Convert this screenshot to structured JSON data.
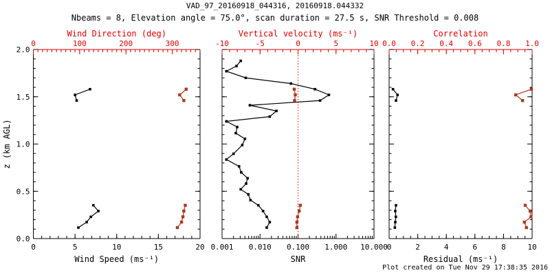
{
  "header": {
    "title": "VAD_97_20160918_044316, 20160918.044332",
    "subtitle": "Nbeams = 8, Elevation angle = 75.0°, scan duration = 27.5 s, SNR Threshold = 0.008"
  },
  "footer": {
    "created": "Plot created on Tue Nov 29 17:38:35 2016"
  },
  "colors": {
    "black": "#000000",
    "data_red": "#a93b22",
    "axis_red": "#dd0000",
    "background": "#ffffff"
  },
  "chart_data": {
    "type": "line",
    "title": "VAD_97_20160918_044316, 20160918.044332",
    "subtitle": "Nbeams = 8, Elevation angle = 75.0°, scan duration = 27.5 s, SNR Threshold = 0.008",
    "grid": false,
    "y_axis": {
      "label": "z (km AGL)",
      "min": 0,
      "max": 2,
      "ticks": [
        0.0,
        0.5,
        1.0,
        1.5,
        2.0
      ],
      "tick_labels": [
        "0.0",
        "0.5",
        "1.0",
        "1.5",
        "2.0"
      ],
      "minor_step": 0.1
    },
    "panels": [
      {
        "name": "wind-panel",
        "bottom_axis": {
          "label": "Wind Speed (ms⁻¹)",
          "scale": "linear",
          "min": 0,
          "max": 20,
          "ticks": [
            0,
            5,
            10,
            15,
            20
          ],
          "tick_labels": [
            "0",
            "5",
            "10",
            "15",
            "20"
          ],
          "minor_step": 1
        },
        "top_axis": {
          "label": "Wind Direction (deg)",
          "scale": "linear",
          "min": 0,
          "max": 360,
          "ticks": [
            0,
            100,
            200,
            300
          ],
          "tick_labels": [
            "0",
            "100",
            "200",
            "300"
          ],
          "minor_step": 10
        },
        "series": [
          {
            "name": "wind-speed",
            "axis": "bottom",
            "color": "black",
            "marker": 3.6,
            "clusters": [
              {
                "z": [
                  0.116,
                  0.174,
                  0.23,
                  0.291,
                  0.352
                ],
                "v": [
                  5.4,
                  6.4,
                  6.9,
                  7.8,
                  7.2
                ]
              },
              {
                "z": [
                  1.46,
                  1.52,
                  1.58
                ],
                "v": [
                  5.2,
                  5.0,
                  6.8
                ]
              }
            ]
          },
          {
            "name": "wind-direction",
            "axis": "top",
            "color": "data_red",
            "marker": 4.4,
            "clusters": [
              {
                "z": [
                  0.116,
                  0.174,
                  0.23,
                  0.291,
                  0.352
                ],
                "v": [
                  311,
                  320,
                  323,
                  325,
                  328
                ]
              },
              {
                "z": [
                  1.46,
                  1.52,
                  1.58
                ],
                "v": [
                  325,
                  316,
                  330
                ]
              }
            ]
          }
        ]
      },
      {
        "name": "snr-panel",
        "bottom_axis": {
          "label": "SNR",
          "scale": "log",
          "min": 0.001,
          "max": 10,
          "ticks": [
            0.001,
            0.01,
            0.1,
            1,
            10
          ],
          "tick_labels": [
            "0.001",
            "0.010",
            "0.100",
            "1.000",
            "10.000"
          ]
        },
        "top_axis": {
          "label": "Vertical velocity (ms⁻¹)",
          "scale": "linear",
          "min": -10,
          "max": 10,
          "ticks": [
            -10,
            -5,
            0,
            5,
            10
          ],
          "tick_labels": [
            "-10",
            "-5",
            "0",
            "5",
            "10"
          ],
          "minor_step": 1
        },
        "ref_line": {
          "axis": "top",
          "value": 0,
          "style": "dotted",
          "color": "axis_red"
        },
        "series": [
          {
            "name": "snr-profile",
            "axis": "bottom",
            "color": "black",
            "marker": 3.6,
            "clusters": [
              {
                "z": [
                  0.116,
                  0.174,
                  0.23,
                  0.291,
                  0.352,
                  0.407,
                  0.468,
                  0.521,
                  0.582,
                  0.638,
                  0.7,
                  0.764,
                  0.836,
                  0.897,
                  0.989,
                  1.055,
                  1.115,
                  1.18,
                  1.24,
                  1.29,
                  1.35,
                  1.41,
                  1.46,
                  1.52,
                  1.58,
                  1.64,
                  1.7,
                  1.77,
                  1.825,
                  1.88
                ],
                "v": [
                  0.015,
                  0.018,
                  0.015,
                  0.012,
                  0.009,
                  0.0056,
                  0.0049,
                  0.0031,
                  0.0043,
                  0.0047,
                  0.0032,
                  0.0028,
                  0.0013,
                  0.002,
                  0.0034,
                  0.004,
                  0.0023,
                  0.0025,
                  0.0013,
                  0.018,
                  0.027,
                  0.0054,
                  0.38,
                  0.65,
                  0.28,
                  0.065,
                  0.0042,
                  0.0013,
                  0.0024,
                  0.0031
                ]
              }
            ]
          },
          {
            "name": "vertical-velocity",
            "axis": "top",
            "color": "data_red",
            "marker": 4.4,
            "clusters": [
              {
                "z": [
                  0.116,
                  0.174,
                  0.23,
                  0.291,
                  0.352
                ],
                "v": [
                  -0.15,
                  -0.15,
                  -0.06,
                  0.15,
                  0.3
                ]
              },
              {
                "z": [
                  1.46,
                  1.52,
                  1.58
                ],
                "v": [
                  -0.45,
                  -0.36,
                  -0.5
                ]
              }
            ]
          }
        ]
      },
      {
        "name": "residual-panel",
        "bottom_axis": {
          "label": "Residual (ms⁻¹)",
          "scale": "linear",
          "min": 0,
          "max": 10,
          "ticks": [
            0,
            2,
            4,
            6,
            8,
            10
          ],
          "tick_labels": [
            "0",
            "2",
            "4",
            "6",
            "8",
            "10"
          ],
          "minor_step": 0.5
        },
        "top_axis": {
          "label": "Correlation",
          "scale": "linear",
          "min": 0,
          "max": 1,
          "ticks": [
            0,
            0.2,
            0.4,
            0.6,
            0.8,
            1
          ],
          "tick_labels": [
            "0.0",
            "0.2",
            "0.4",
            "0.6",
            "0.8",
            "1.0"
          ],
          "minor_step": 0.05
        },
        "series": [
          {
            "name": "residual",
            "axis": "bottom",
            "color": "black",
            "marker": 3.6,
            "clusters": [
              {
                "z": [
                  0.116,
                  0.174,
                  0.23,
                  0.291,
                  0.352
                ],
                "v": [
                  0.4,
                  0.43,
                  0.47,
                  0.43,
                  0.48
                ]
              },
              {
                "z": [
                  1.46,
                  1.52,
                  1.58
                ],
                "v": [
                  0.48,
                  0.59,
                  0.27
                ]
              }
            ]
          },
          {
            "name": "correlation",
            "axis": "top",
            "color": "data_red",
            "marker": 4.4,
            "clusters": [
              {
                "z": [
                  0.116,
                  0.174,
                  0.23,
                  0.291,
                  0.352
                ],
                "v": [
                  0.96,
                  0.946,
                  0.992,
                  0.986,
                  0.952
                ]
              },
              {
                "z": [
                  1.46,
                  1.52,
                  1.58
                ],
                "v": [
                  0.933,
                  0.885,
                  0.995
                ]
              }
            ]
          }
        ]
      }
    ]
  }
}
